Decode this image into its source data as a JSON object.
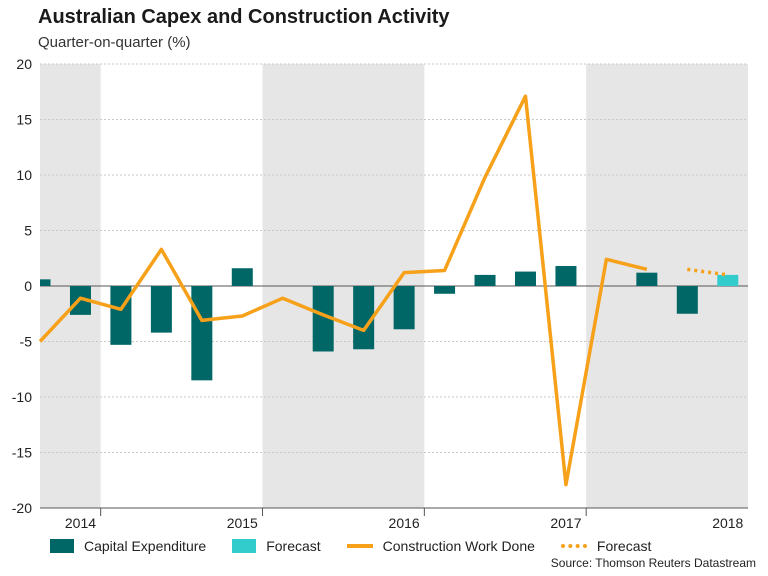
{
  "title": "Australian Capex and Construction Activity",
  "subtitle": "Quarter-on-quarter (%)",
  "source": "Source: Thomson Reuters Datastream",
  "colors": {
    "capex": "#006666",
    "capex_forecast": "#33cccc",
    "construction": "#f7a11a",
    "shade": "#e6e6e6",
    "grid": "#c8c8c8",
    "zero": "#555555"
  },
  "legend": [
    {
      "label": "Capital Expenditure",
      "kind": "box",
      "color": "#006666"
    },
    {
      "label": "Forecast",
      "kind": "box",
      "color": "#33cccc"
    },
    {
      "label": "Construction Work Done",
      "kind": "line",
      "color": "#f7a11a"
    },
    {
      "label": "Forecast",
      "kind": "dotted",
      "color": "#f7a11a"
    }
  ],
  "chart_data": {
    "type": "bar",
    "title": "Australian Capex and Construction Activity",
    "subtitle": "Quarter-on-quarter (%)",
    "ylabel": "Quarter-on-quarter (%)",
    "ylim": [
      -20,
      20
    ],
    "yticks": [
      20,
      15,
      10,
      5,
      0,
      -5,
      -10,
      -15,
      -20
    ],
    "x_range": [
      2014.25,
      2018.625
    ],
    "year_labels": [
      {
        "label": "2014",
        "x": 2014.5
      },
      {
        "label": "2015",
        "x": 2015.5
      },
      {
        "label": "2016",
        "x": 2016.5
      },
      {
        "label": "2017",
        "x": 2017.5
      },
      {
        "label": "2018",
        "x": 2018.5
      }
    ],
    "shaded_years": [
      [
        2014.25,
        2014.625
      ],
      [
        2015.625,
        2016.625
      ],
      [
        2017.625,
        2018.625
      ]
    ],
    "bar_series": {
      "name": "Capital Expenditure",
      "x": [
        2014.25,
        2014.5,
        2014.75,
        2015.0,
        2015.25,
        2015.5,
        2015.75,
        2016.0,
        2016.25,
        2016.5,
        2016.75,
        2017.0,
        2017.25,
        2017.5,
        2017.75,
        2018.0,
        2018.25
      ],
      "values": [
        0.6,
        -2.6,
        -5.3,
        -4.2,
        -8.5,
        1.6,
        null,
        -5.9,
        -5.7,
        -3.9,
        -0.7,
        1.0,
        1.3,
        1.8,
        null,
        1.2,
        -2.5
      ]
    },
    "bar_forecast": {
      "name": "Forecast",
      "x": [
        2018.5
      ],
      "values": [
        1.0
      ]
    },
    "line_series": {
      "name": "Construction Work Done",
      "x": [
        2014.25,
        2014.5,
        2014.75,
        2015.0,
        2015.25,
        2015.5,
        2015.75,
        2016.0,
        2016.25,
        2016.5,
        2016.75,
        2017.0,
        2017.25,
        2017.5,
        2017.75,
        2018.0,
        2018.25
      ],
      "values": [
        -5.0,
        -1.1,
        -2.1,
        3.3,
        -3.1,
        -2.7,
        -1.1,
        -2.6,
        -4.0,
        1.2,
        1.4,
        9.8,
        17.1,
        -17.9,
        2.4,
        1.5,
        null
      ]
    },
    "line_forecast": {
      "name": "Forecast",
      "x": [
        2018.25,
        2018.5
      ],
      "values": [
        1.5,
        1.0
      ]
    }
  }
}
